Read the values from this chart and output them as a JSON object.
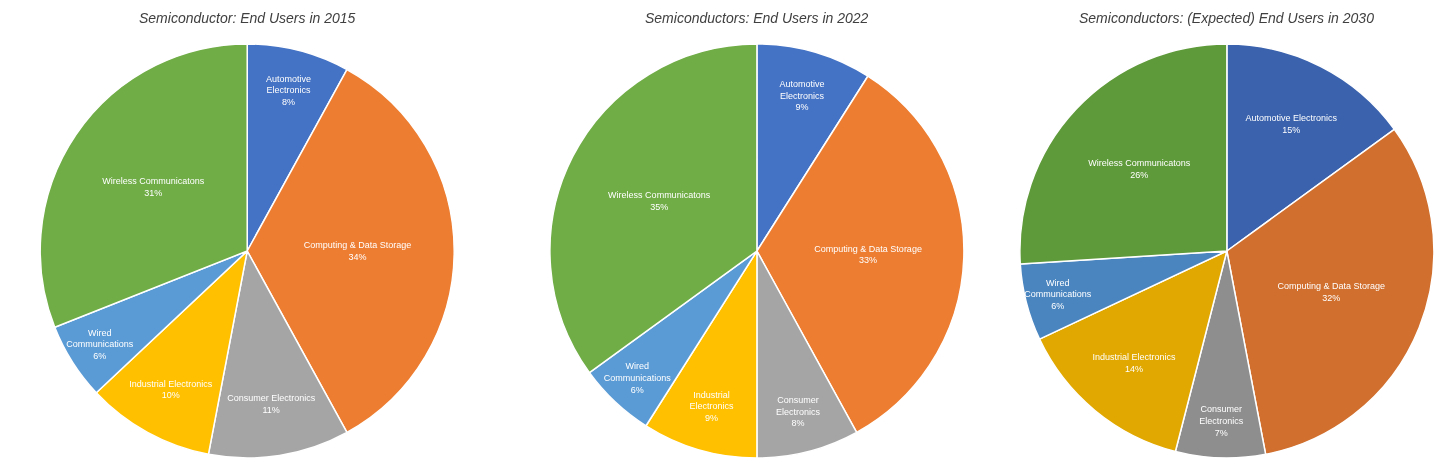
{
  "chart_data": [
    {
      "type": "pie",
      "title": "Semiconductor: End Users in 2015",
      "categories": [
        "Automotive Electronics",
        "Computing & Data Storage",
        "Consumer Electronics",
        "Industrial Electronics",
        "Wired Communications",
        "Wireless Communicatons"
      ],
      "values": [
        8,
        34,
        11,
        10,
        6,
        31
      ],
      "value_labels": [
        "8%",
        "34%",
        "11%",
        "10%",
        "6%",
        "31%"
      ],
      "colors": [
        "#4472c4",
        "#ed7d31",
        "#a5a5a5",
        "#ffc000",
        "#5b9bd5",
        "#70ad47"
      ]
    },
    {
      "type": "pie",
      "title": "Semiconductors: End Users in 2022",
      "categories": [
        "Automotive Electronics",
        "Computing & Data Storage",
        "Consumer Electronics",
        "Industrial Electronics",
        "Wired Communications",
        "Wireless Communicatons"
      ],
      "values": [
        9,
        33,
        8,
        9,
        6,
        35
      ],
      "value_labels": [
        "9%",
        "33%",
        "8%",
        "9%",
        "6%",
        "35%"
      ],
      "colors": [
        "#4472c4",
        "#ed7d31",
        "#a5a5a5",
        "#ffc000",
        "#5b9bd5",
        "#70ad47"
      ]
    },
    {
      "type": "pie",
      "title": "Semiconductors: (Expected) End Users in 2030",
      "categories": [
        "Automotive Electronics",
        "Computing & Data Storage",
        "Consumer Electronics",
        "Industrial Electronics",
        "Wired Communications",
        "Wireless Communicatons"
      ],
      "values": [
        15,
        32,
        7,
        14,
        6,
        26
      ],
      "value_labels": [
        "15%",
        "32%",
        "7%",
        "14%",
        "6%",
        "26%"
      ],
      "colors": [
        "#3a62ad",
        "#d06f2e",
        "#8e8e8e",
        "#e0a800",
        "#4a85c0",
        "#5f9a3a"
      ]
    }
  ]
}
